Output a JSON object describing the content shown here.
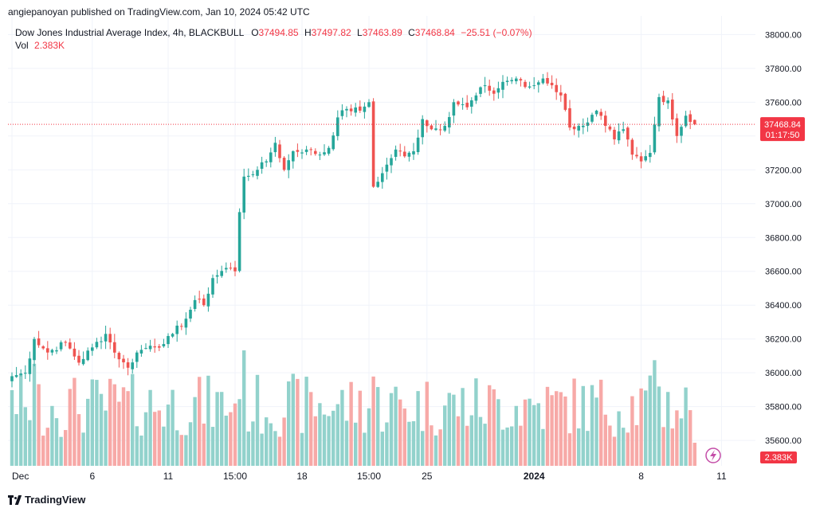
{
  "header": {
    "publisher": "angiepanoyan published on TradingView.com, Jan 10, 2024 05:42 UTC",
    "symbol": "Dow Jones Industrial Average Index, 4h, BLACKBULL",
    "o_label": "O",
    "o_value": "37494.85",
    "h_label": "H",
    "h_value": "37497.82",
    "l_label": "L",
    "l_value": "37463.89",
    "c_label": "C",
    "c_value": "37468.84",
    "change": "−25.51 (−0.07%)",
    "vol_label": "Vol",
    "vol_value": "2.383K"
  },
  "footer": {
    "brand": "TradingView"
  },
  "colors": {
    "up": "#26a69a",
    "down": "#ef5350",
    "up_vol": "#92d2cc",
    "down_vol": "#f7a9a7",
    "price_tag": "#f23645",
    "grid": "#f0f3fa"
  },
  "chart_data": {
    "type": "candlestick",
    "timeframe": "4h",
    "ylim": [
      35450,
      38110
    ],
    "y_ticks": [
      "38000.00",
      "37800.00",
      "37600.00",
      "37400.00",
      "37200.00",
      "37000.00",
      "36800.00",
      "36600.00",
      "36400.00",
      "36200.00",
      "36000.00",
      "35800.00",
      "35600.00"
    ],
    "x_ticks": [
      {
        "label": "Dec",
        "index": 0
      },
      {
        "label": "6",
        "index": 18
      },
      {
        "label": "11",
        "index": 35
      },
      {
        "label": "15:00",
        "index": 50
      },
      {
        "label": "18",
        "index": 65
      },
      {
        "label": "15:00",
        "index": 80
      },
      {
        "label": "25",
        "index": 93
      },
      {
        "label": "2024",
        "index": 117
      },
      {
        "label": "8",
        "index": 141
      },
      {
        "label": "11",
        "index": 159
      }
    ],
    "current_price": {
      "value": 37468.84,
      "label": "37468.84",
      "countdown": "01:17:50"
    },
    "current_volume": {
      "label": "2.383K"
    },
    "anchors": [
      {
        "i": 0,
        "c": 35980
      },
      {
        "i": 3,
        "c": 36000
      },
      {
        "i": 5,
        "c": 36200
      },
      {
        "i": 8,
        "c": 36120
      },
      {
        "i": 12,
        "c": 36180
      },
      {
        "i": 15,
        "c": 36060
      },
      {
        "i": 18,
        "c": 36150
      },
      {
        "i": 21,
        "c": 36230
      },
      {
        "i": 24,
        "c": 36080
      },
      {
        "i": 26,
        "c": 36030
      },
      {
        "i": 28,
        "c": 36120
      },
      {
        "i": 31,
        "c": 36160
      },
      {
        "i": 34,
        "c": 36170
      },
      {
        "i": 36,
        "c": 36230
      },
      {
        "i": 39,
        "c": 36320
      },
      {
        "i": 41,
        "c": 36430
      },
      {
        "i": 43,
        "c": 36400
      },
      {
        "i": 45,
        "c": 36560
      },
      {
        "i": 48,
        "c": 36620
      },
      {
        "i": 50,
        "c": 36600
      },
      {
        "i": 51,
        "c": 36950
      },
      {
        "i": 52,
        "c": 37160
      },
      {
        "i": 55,
        "c": 37200
      },
      {
        "i": 57,
        "c": 37250
      },
      {
        "i": 59,
        "c": 37360
      },
      {
        "i": 61,
        "c": 37200
      },
      {
        "i": 63,
        "c": 37310
      },
      {
        "i": 66,
        "c": 37320
      },
      {
        "i": 69,
        "c": 37290
      },
      {
        "i": 71,
        "c": 37330
      },
      {
        "i": 73,
        "c": 37510
      },
      {
        "i": 75,
        "c": 37560
      },
      {
        "i": 78,
        "c": 37550
      },
      {
        "i": 80,
        "c": 37600
      },
      {
        "i": 81,
        "c": 37100
      },
      {
        "i": 83,
        "c": 37180
      },
      {
        "i": 86,
        "c": 37320
      },
      {
        "i": 88,
        "c": 37280
      },
      {
        "i": 90,
        "c": 37310
      },
      {
        "i": 92,
        "c": 37500
      },
      {
        "i": 94,
        "c": 37440
      },
      {
        "i": 97,
        "c": 37460
      },
      {
        "i": 99,
        "c": 37600
      },
      {
        "i": 102,
        "c": 37570
      },
      {
        "i": 104,
        "c": 37640
      },
      {
        "i": 106,
        "c": 37700
      },
      {
        "i": 108,
        "c": 37650
      },
      {
        "i": 110,
        "c": 37720
      },
      {
        "i": 113,
        "c": 37740
      },
      {
        "i": 115,
        "c": 37690
      },
      {
        "i": 117,
        "c": 37700
      },
      {
        "i": 119,
        "c": 37740
      },
      {
        "i": 121,
        "c": 37700
      },
      {
        "i": 123,
        "c": 37640
      },
      {
        "i": 125,
        "c": 37450
      },
      {
        "i": 127,
        "c": 37460
      },
      {
        "i": 129,
        "c": 37480
      },
      {
        "i": 131,
        "c": 37550
      },
      {
        "i": 133,
        "c": 37460
      },
      {
        "i": 135,
        "c": 37380
      },
      {
        "i": 137,
        "c": 37440
      },
      {
        "i": 139,
        "c": 37290
      },
      {
        "i": 141,
        "c": 37250
      },
      {
        "i": 143,
        "c": 37300
      },
      {
        "i": 145,
        "c": 37630
      },
      {
        "i": 147,
        "c": 37610
      },
      {
        "i": 149,
        "c": 37400
      },
      {
        "i": 151,
        "c": 37520
      },
      {
        "i": 153,
        "c": 37469
      }
    ]
  }
}
